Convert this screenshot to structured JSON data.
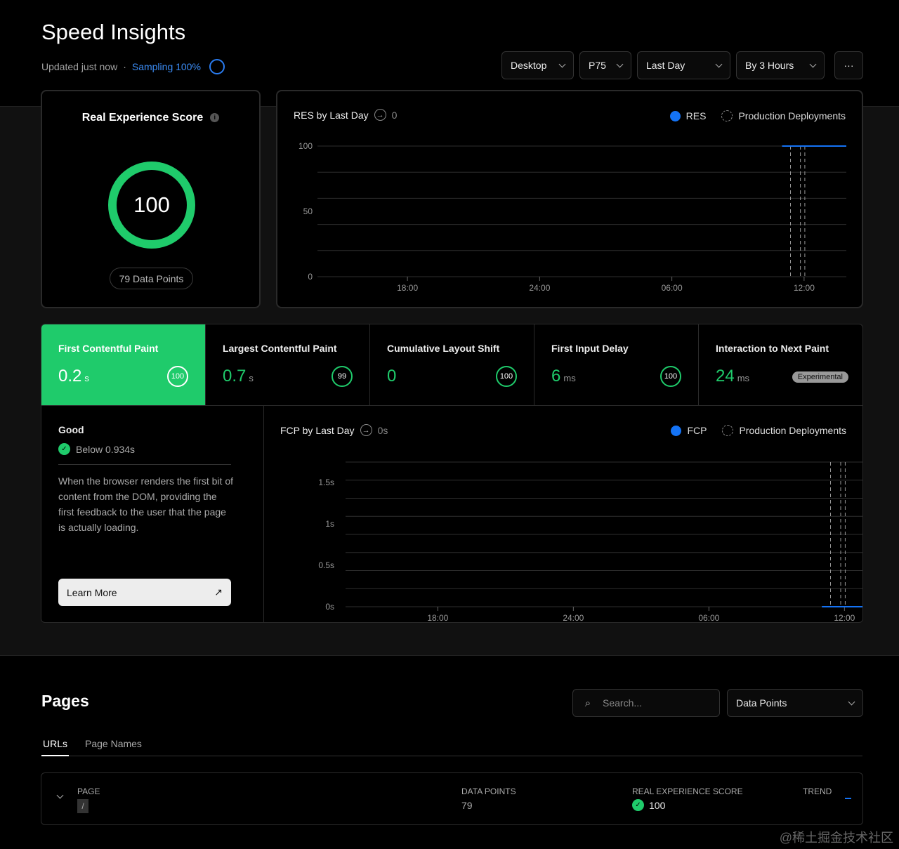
{
  "header": {
    "title": "Speed Insights",
    "updated": "Updated just now",
    "separator": "·",
    "sampling": "Sampling 100%",
    "filters": [
      {
        "label": "Desktop"
      },
      {
        "label": "P75"
      },
      {
        "label": "Last Day"
      },
      {
        "label": "By 3 Hours"
      }
    ],
    "more": "···"
  },
  "score": {
    "title": "Real Experience Score",
    "value": "100",
    "data_points": "79 Data Points",
    "color": "#1fcb6b"
  },
  "res_chart": {
    "title": "RES by Last Day",
    "change": "0",
    "legend": [
      "RES",
      "Production Deployments"
    ]
  },
  "metrics": [
    {
      "label": "First Contentful Paint",
      "value": "0.2",
      "unit": "s",
      "score": "100",
      "active": true
    },
    {
      "label": "Largest Contentful Paint",
      "value": "0.7",
      "unit": "s",
      "score": "99"
    },
    {
      "label": "Cumulative Layout Shift",
      "value": "0",
      "unit": "",
      "score": "100"
    },
    {
      "label": "First Input Delay",
      "value": "6",
      "unit": "ms",
      "score": "100"
    },
    {
      "label": "Interaction to Next Paint",
      "value": "24",
      "unit": "ms",
      "badge": "Experimental"
    }
  ],
  "detail": {
    "rating": "Good",
    "threshold": "Below 0.934s",
    "description": "When the browser renders the first bit of content from the DOM, providing the first feedback to the user that the page is actually loading.",
    "learn_more": "Learn More"
  },
  "fcp_chart": {
    "title": "FCP by Last Day",
    "change": "0s",
    "legend": [
      "FCP",
      "Production Deployments"
    ]
  },
  "chart_data": [
    {
      "type": "line",
      "title": "RES by Last Day",
      "yticks": [
        "0",
        "50",
        "100"
      ],
      "ylim": [
        0,
        100
      ],
      "xticks": [
        "18:00",
        "24:00",
        "06:00",
        "12:00"
      ],
      "xlim": [
        "13:55",
        "13:55 (+1 day)"
      ],
      "series": [
        {
          "name": "RES",
          "color": "#1473f5",
          "points": [
            [
              "11:00",
              100
            ],
            [
              "13:55",
              100
            ]
          ]
        }
      ],
      "deployments": [
        "11:23",
        "11:50",
        "12:02"
      ]
    },
    {
      "type": "line",
      "title": "FCP by Last Day",
      "yticks": [
        "0s",
        "0.5s",
        "1s",
        "1.5s"
      ],
      "ylim": [
        0,
        1.5
      ],
      "xticks": [
        "18:00",
        "24:00",
        "06:00",
        "12:00"
      ],
      "xlim": [
        "13:55",
        "13:55 (+1 day)"
      ],
      "series": [
        {
          "name": "FCP",
          "color": "#1473f5",
          "points": [
            [
              "11:00",
              0
            ],
            [
              "13:55",
              0
            ]
          ]
        }
      ],
      "deployments": [
        "11:23",
        "11:50",
        "12:02"
      ]
    }
  ],
  "pages": {
    "title": "Pages",
    "search_placeholder": "Search...",
    "sort": "Data Points",
    "tabs": [
      "URLs",
      "Page Names"
    ],
    "columns": [
      "PAGE",
      "DATA POINTS",
      "REAL EXPERIENCE SCORE",
      "TREND"
    ],
    "rows": [
      {
        "page": "/",
        "data_points": "79",
        "score": "100"
      }
    ]
  },
  "watermark": "@稀土掘金技术社区"
}
